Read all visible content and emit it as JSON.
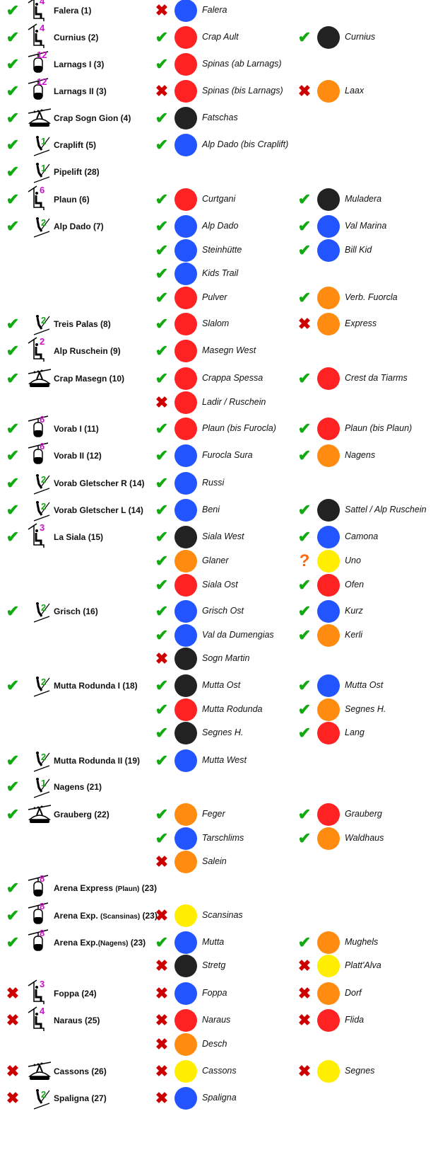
{
  "colors": {
    "blue": "#2255ff",
    "red": "#ff2222",
    "black": "#222222",
    "orange": "#ff8c10",
    "yellow": "#ffee00",
    "ok": "#11aa11",
    "closed": "#cc0000",
    "unknown": "#ff6a10"
  },
  "rows": [
    {
      "lift": {
        "status": "open",
        "type": "chairlift",
        "cap": "4",
        "name": "Falera (1)"
      },
      "slopes": [
        {
          "status": "closed",
          "color": "blue",
          "name": "Falera"
        }
      ]
    },
    {
      "lift": {
        "status": "open",
        "type": "chairlift",
        "cap": "4",
        "name": "Curnius (2)"
      },
      "slopes": [
        {
          "status": "open",
          "color": "red",
          "name": "Crap Ault"
        },
        {
          "status": "open",
          "color": "black",
          "name": "Curnius"
        }
      ]
    },
    {
      "lift": {
        "status": "open",
        "type": "gondola",
        "cap": "12",
        "name": "Larnags I (3)"
      },
      "slopes": [
        {
          "status": "open",
          "color": "red",
          "name": "Spinas (ab Larnags)"
        }
      ]
    },
    {
      "lift": {
        "status": "open",
        "type": "gondola",
        "cap": "12",
        "name": "Larnags II (3)"
      },
      "slopes": [
        {
          "status": "closed",
          "color": "red",
          "name": "Spinas (bis Larnags)"
        },
        {
          "status": "closed",
          "color": "orange",
          "name": "Laax"
        }
      ]
    },
    {
      "lift": {
        "status": "open",
        "type": "cablecar",
        "cap": "",
        "name": "Crap Sogn Gion (4)"
      },
      "slopes": [
        {
          "status": "open",
          "color": "black",
          "name": "Fatschas"
        }
      ]
    },
    {
      "lift": {
        "status": "open",
        "type": "tbar",
        "cap": "1",
        "name": "Craplift (5)"
      },
      "slopes": [
        {
          "status": "open",
          "color": "blue",
          "name": "Alp Dado (bis Craplift)"
        }
      ]
    },
    {
      "lift": {
        "status": "open",
        "type": "tbar",
        "cap": "1",
        "name": "Pipelift (28)"
      },
      "slopes": []
    },
    {
      "lift": {
        "status": "open",
        "type": "chairlift",
        "cap": "6",
        "name": "Plaun (6)"
      },
      "slopes": [
        {
          "status": "open",
          "color": "red",
          "name": "Curtgani"
        },
        {
          "status": "open",
          "color": "black",
          "name": "Muladera"
        }
      ]
    },
    {
      "lift": {
        "status": "open",
        "type": "tbar",
        "cap": "2",
        "name": "Alp Dado (7)"
      },
      "slopes": [
        {
          "status": "open",
          "color": "blue",
          "name": "Alp Dado"
        },
        {
          "status": "open",
          "color": "blue",
          "name": "Val Marina"
        }
      ]
    },
    {
      "slopes": [
        {
          "status": "open",
          "color": "blue",
          "name": "Steinhütte"
        },
        {
          "status": "open",
          "color": "blue",
          "name": "Bill Kid"
        }
      ]
    },
    {
      "slopes": [
        {
          "status": "open",
          "color": "blue",
          "name": "Kids Trail"
        }
      ]
    },
    {
      "slopes": [
        {
          "status": "open",
          "color": "red",
          "name": "Pulver"
        },
        {
          "status": "open",
          "color": "orange",
          "name": "Verb. Fuorcla"
        }
      ]
    },
    {
      "lift": {
        "status": "open",
        "type": "tbar",
        "cap": "2",
        "name": "Treis Palas (8)"
      },
      "slopes": [
        {
          "status": "open",
          "color": "red",
          "name": "Slalom"
        },
        {
          "status": "closed",
          "color": "orange",
          "name": "Express"
        }
      ]
    },
    {
      "lift": {
        "status": "open",
        "type": "chairlift",
        "cap": "2",
        "name": "Alp Ruschein (9)"
      },
      "slopes": [
        {
          "status": "open",
          "color": "red",
          "name": "Masegn West"
        }
      ]
    },
    {
      "lift": {
        "status": "open",
        "type": "cablecar",
        "cap": "",
        "name": "Crap Masegn (10)"
      },
      "slopes": [
        {
          "status": "open",
          "color": "red",
          "name": "Crappa Spessa"
        },
        {
          "status": "open",
          "color": "red",
          "name": "Crest da Tiarms"
        }
      ]
    },
    {
      "slopes": [
        {
          "status": "closed",
          "color": "red",
          "name": "Ladir / Ruschein"
        }
      ]
    },
    {
      "lift": {
        "status": "open",
        "type": "gondola",
        "cap": "6",
        "name": "Vorab I (11)"
      },
      "slopes": [
        {
          "status": "open",
          "color": "red",
          "name": "Plaun (bis Furocla)"
        },
        {
          "status": "open",
          "color": "red",
          "name": "Plaun (bis Plaun)"
        }
      ]
    },
    {
      "lift": {
        "status": "open",
        "type": "gondola",
        "cap": "6",
        "name": "Vorab II (12)"
      },
      "slopes": [
        {
          "status": "open",
          "color": "blue",
          "name": "Furocla Sura"
        },
        {
          "status": "open",
          "color": "orange",
          "name": "Nagens"
        }
      ]
    },
    {
      "lift": {
        "status": "open",
        "type": "tbar",
        "cap": "2",
        "name": "Vorab Gletscher R (14)"
      },
      "slopes": [
        {
          "status": "open",
          "color": "blue",
          "name": "Russi"
        }
      ]
    },
    {
      "lift": {
        "status": "open",
        "type": "tbar",
        "cap": "2",
        "name": "Vorab Gletscher L (14)"
      },
      "slopes": [
        {
          "status": "open",
          "color": "blue",
          "name": "Beni"
        },
        {
          "status": "open",
          "color": "black",
          "name": "Sattel / Alp Ruschein"
        }
      ]
    },
    {
      "lift": {
        "status": "open",
        "type": "chairlift",
        "cap": "3",
        "name": "La Siala (15)"
      },
      "slopes": [
        {
          "status": "open",
          "color": "black",
          "name": "Siala West"
        },
        {
          "status": "open",
          "color": "blue",
          "name": "Camona"
        }
      ]
    },
    {
      "slopes": [
        {
          "status": "open",
          "color": "orange",
          "name": "Glaner"
        },
        {
          "status": "unknown",
          "color": "yellow",
          "name": "Uno"
        }
      ]
    },
    {
      "slopes": [
        {
          "status": "open",
          "color": "red",
          "name": "Siala Ost"
        },
        {
          "status": "open",
          "color": "red",
          "name": "Ofen"
        }
      ]
    },
    {
      "lift": {
        "status": "open",
        "type": "tbar",
        "cap": "2",
        "name": "Grisch (16)"
      },
      "slopes": [
        {
          "status": "open",
          "color": "blue",
          "name": "Grisch Ost"
        },
        {
          "status": "open",
          "color": "blue",
          "name": "Kurz"
        }
      ]
    },
    {
      "slopes": [
        {
          "status": "open",
          "color": "blue",
          "name": "Val da Dumengias"
        },
        {
          "status": "open",
          "color": "orange",
          "name": "Kerli"
        }
      ]
    },
    {
      "slopes": [
        {
          "status": "closed",
          "color": "black",
          "name": "Sogn Martin"
        }
      ]
    },
    {
      "lift": {
        "status": "open",
        "type": "tbar",
        "cap": "2",
        "name": "Mutta Rodunda I (18)"
      },
      "slopes": [
        {
          "status": "open",
          "color": "black",
          "name": "Mutta Ost"
        },
        {
          "status": "open",
          "color": "blue",
          "name": "Mutta Ost"
        }
      ]
    },
    {
      "slopes": [
        {
          "status": "open",
          "color": "red",
          "name": "Mutta Rodunda"
        },
        {
          "status": "open",
          "color": "orange",
          "name": "Segnes H."
        }
      ]
    },
    {
      "slopes": [
        {
          "status": "open",
          "color": "black",
          "name": "Segnes H."
        },
        {
          "status": "open",
          "color": "red",
          "name": "Lang"
        }
      ]
    },
    {
      "lift": {
        "status": "open",
        "type": "tbar",
        "cap": "2",
        "name": "Mutta Rodunda II (19)"
      },
      "slopes": [
        {
          "status": "open",
          "color": "blue",
          "name": "Mutta West"
        }
      ]
    },
    {
      "lift": {
        "status": "open",
        "type": "tbar",
        "cap": "1",
        "name": "Nagens (21)"
      },
      "slopes": []
    },
    {
      "lift": {
        "status": "open",
        "type": "cablecar",
        "cap": "",
        "name": "Grauberg (22)"
      },
      "slopes": [
        {
          "status": "open",
          "color": "orange",
          "name": "Feger"
        },
        {
          "status": "open",
          "color": "red",
          "name": "Grauberg"
        }
      ]
    },
    {
      "slopes": [
        {
          "status": "open",
          "color": "blue",
          "name": "Tarschlims"
        },
        {
          "status": "open",
          "color": "orange",
          "name": "Waldhaus"
        }
      ]
    },
    {
      "slopes": [
        {
          "status": "closed",
          "color": "orange",
          "name": "Salein"
        }
      ]
    },
    {
      "lift": {
        "status": "open",
        "type": "gondola",
        "cap": "8",
        "name": "Arena Express ",
        "small": "(Plaun)",
        "suffix": " (23)"
      },
      "slopes": []
    },
    {
      "lift": {
        "status": "open",
        "type": "gondola",
        "cap": "8",
        "name": "Arena Exp. ",
        "small": "(Scansinas)",
        "suffix": " (23)"
      },
      "slopes": [
        {
          "status": "closed",
          "color": "yellow",
          "name": "Scansinas"
        }
      ]
    },
    {
      "lift": {
        "status": "open",
        "type": "gondola",
        "cap": "8",
        "name": "Arena Exp.",
        "small": "(Nagens)",
        "suffix": " (23)"
      },
      "slopes": [
        {
          "status": "open",
          "color": "blue",
          "name": "Mutta"
        },
        {
          "status": "open",
          "color": "orange",
          "name": "Mughels"
        }
      ]
    },
    {
      "slopes": [
        {
          "status": "closed",
          "color": "black",
          "name": "Stretg"
        },
        {
          "status": "closed",
          "color": "yellow",
          "name": "Platt'Alva"
        }
      ]
    },
    {
      "lift": {
        "status": "closed",
        "type": "chairlift",
        "cap": "3",
        "name": "Foppa (24)"
      },
      "slopes": [
        {
          "status": "closed",
          "color": "blue",
          "name": "Foppa"
        },
        {
          "status": "closed",
          "color": "orange",
          "name": "Dorf"
        }
      ]
    },
    {
      "lift": {
        "status": "closed",
        "type": "chairlift",
        "cap": "4",
        "name": "Naraus (25)"
      },
      "slopes": [
        {
          "status": "closed",
          "color": "red",
          "name": "Naraus"
        },
        {
          "status": "closed",
          "color": "red",
          "name": "Flida"
        }
      ]
    },
    {
      "slopes": [
        {
          "status": "closed",
          "color": "orange",
          "name": "Desch"
        }
      ]
    },
    {
      "lift": {
        "status": "closed",
        "type": "cablecar",
        "cap": "",
        "name": "Cassons (26)"
      },
      "slopes": [
        {
          "status": "closed",
          "color": "yellow",
          "name": "Cassons"
        },
        {
          "status": "closed",
          "color": "yellow",
          "name": "Segnes"
        }
      ]
    },
    {
      "lift": {
        "status": "closed",
        "type": "tbar",
        "cap": "2",
        "name": "Spaligna (27)"
      },
      "slopes": [
        {
          "status": "closed",
          "color": "blue",
          "name": "Spaligna"
        }
      ]
    }
  ]
}
